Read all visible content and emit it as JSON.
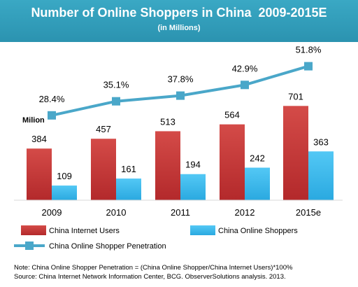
{
  "header": {
    "title": "Number of Online Shoppers in China  2009-2015E",
    "subtitle": "(in Millions)"
  },
  "chart_data": {
    "type": "bar",
    "title": "Number of Online Shoppers in China  2009-2015E",
    "subtitle": "(in Millions)",
    "unit_label": "Milion",
    "categories": [
      "2009",
      "2010",
      "2011",
      "2012",
      "2015e"
    ],
    "series": [
      {
        "name": "China Internet Users",
        "type": "bar",
        "values": [
          384,
          457,
          513,
          564,
          701
        ],
        "color": "#c0383a"
      },
      {
        "name": "China Online Shoppers",
        "type": "bar",
        "values": [
          109,
          161,
          194,
          242,
          363
        ],
        "color": "#39b6ea"
      },
      {
        "name": "China Online Shopper Penetration",
        "type": "line",
        "values": [
          28.4,
          35.1,
          37.8,
          42.9,
          51.8
        ],
        "value_labels": [
          "28.4%",
          "35.1%",
          "37.8%",
          "42.9%",
          "51.8%"
        ],
        "color": "#4aa7c9"
      }
    ],
    "bar_value_labels": {
      "China Internet Users": [
        "384",
        "457",
        "513",
        "564",
        "701"
      ],
      "China Online Shoppers": [
        "109",
        "161",
        "194",
        "242",
        "363"
      ]
    },
    "bar_ylim": [
      0,
      760
    ],
    "line_ylim": [
      0,
      60
    ],
    "legend_position": "bottom"
  },
  "notes": {
    "note": "Note: China Online Shopper Penetration = (China Online Shopper/China Internet Users)*100%",
    "source": "Source:  China Internet Network Information Center, BCG. ObserverSolutions analysis. 2013."
  }
}
